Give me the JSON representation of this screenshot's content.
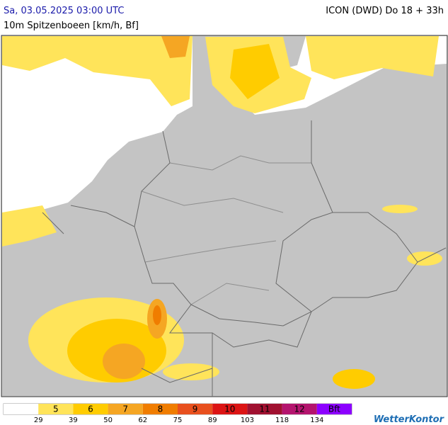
{
  "header": {
    "title": "Sa, 03.05.2025 03:00 UTC",
    "subtitle": "10m Spitzenboeen [km/h, Bf]",
    "model": "ICON (DWD) Do 18 + 33h"
  },
  "legend": {
    "colors": [
      "#ffffff",
      "#ffe45a",
      "#ffcc00",
      "#f5a623",
      "#f07d00",
      "#e8501e",
      "#dc1414",
      "#a01030",
      "#b4146e",
      "#8c00ff"
    ],
    "labels": [
      null,
      "5",
      "6",
      "7",
      "8",
      "9",
      "10",
      "11",
      "12",
      "Bft"
    ],
    "thresholds": [
      29,
      39,
      50,
      62,
      75,
      89,
      103,
      118,
      134
    ]
  },
  "logo": "WetterKontor"
}
